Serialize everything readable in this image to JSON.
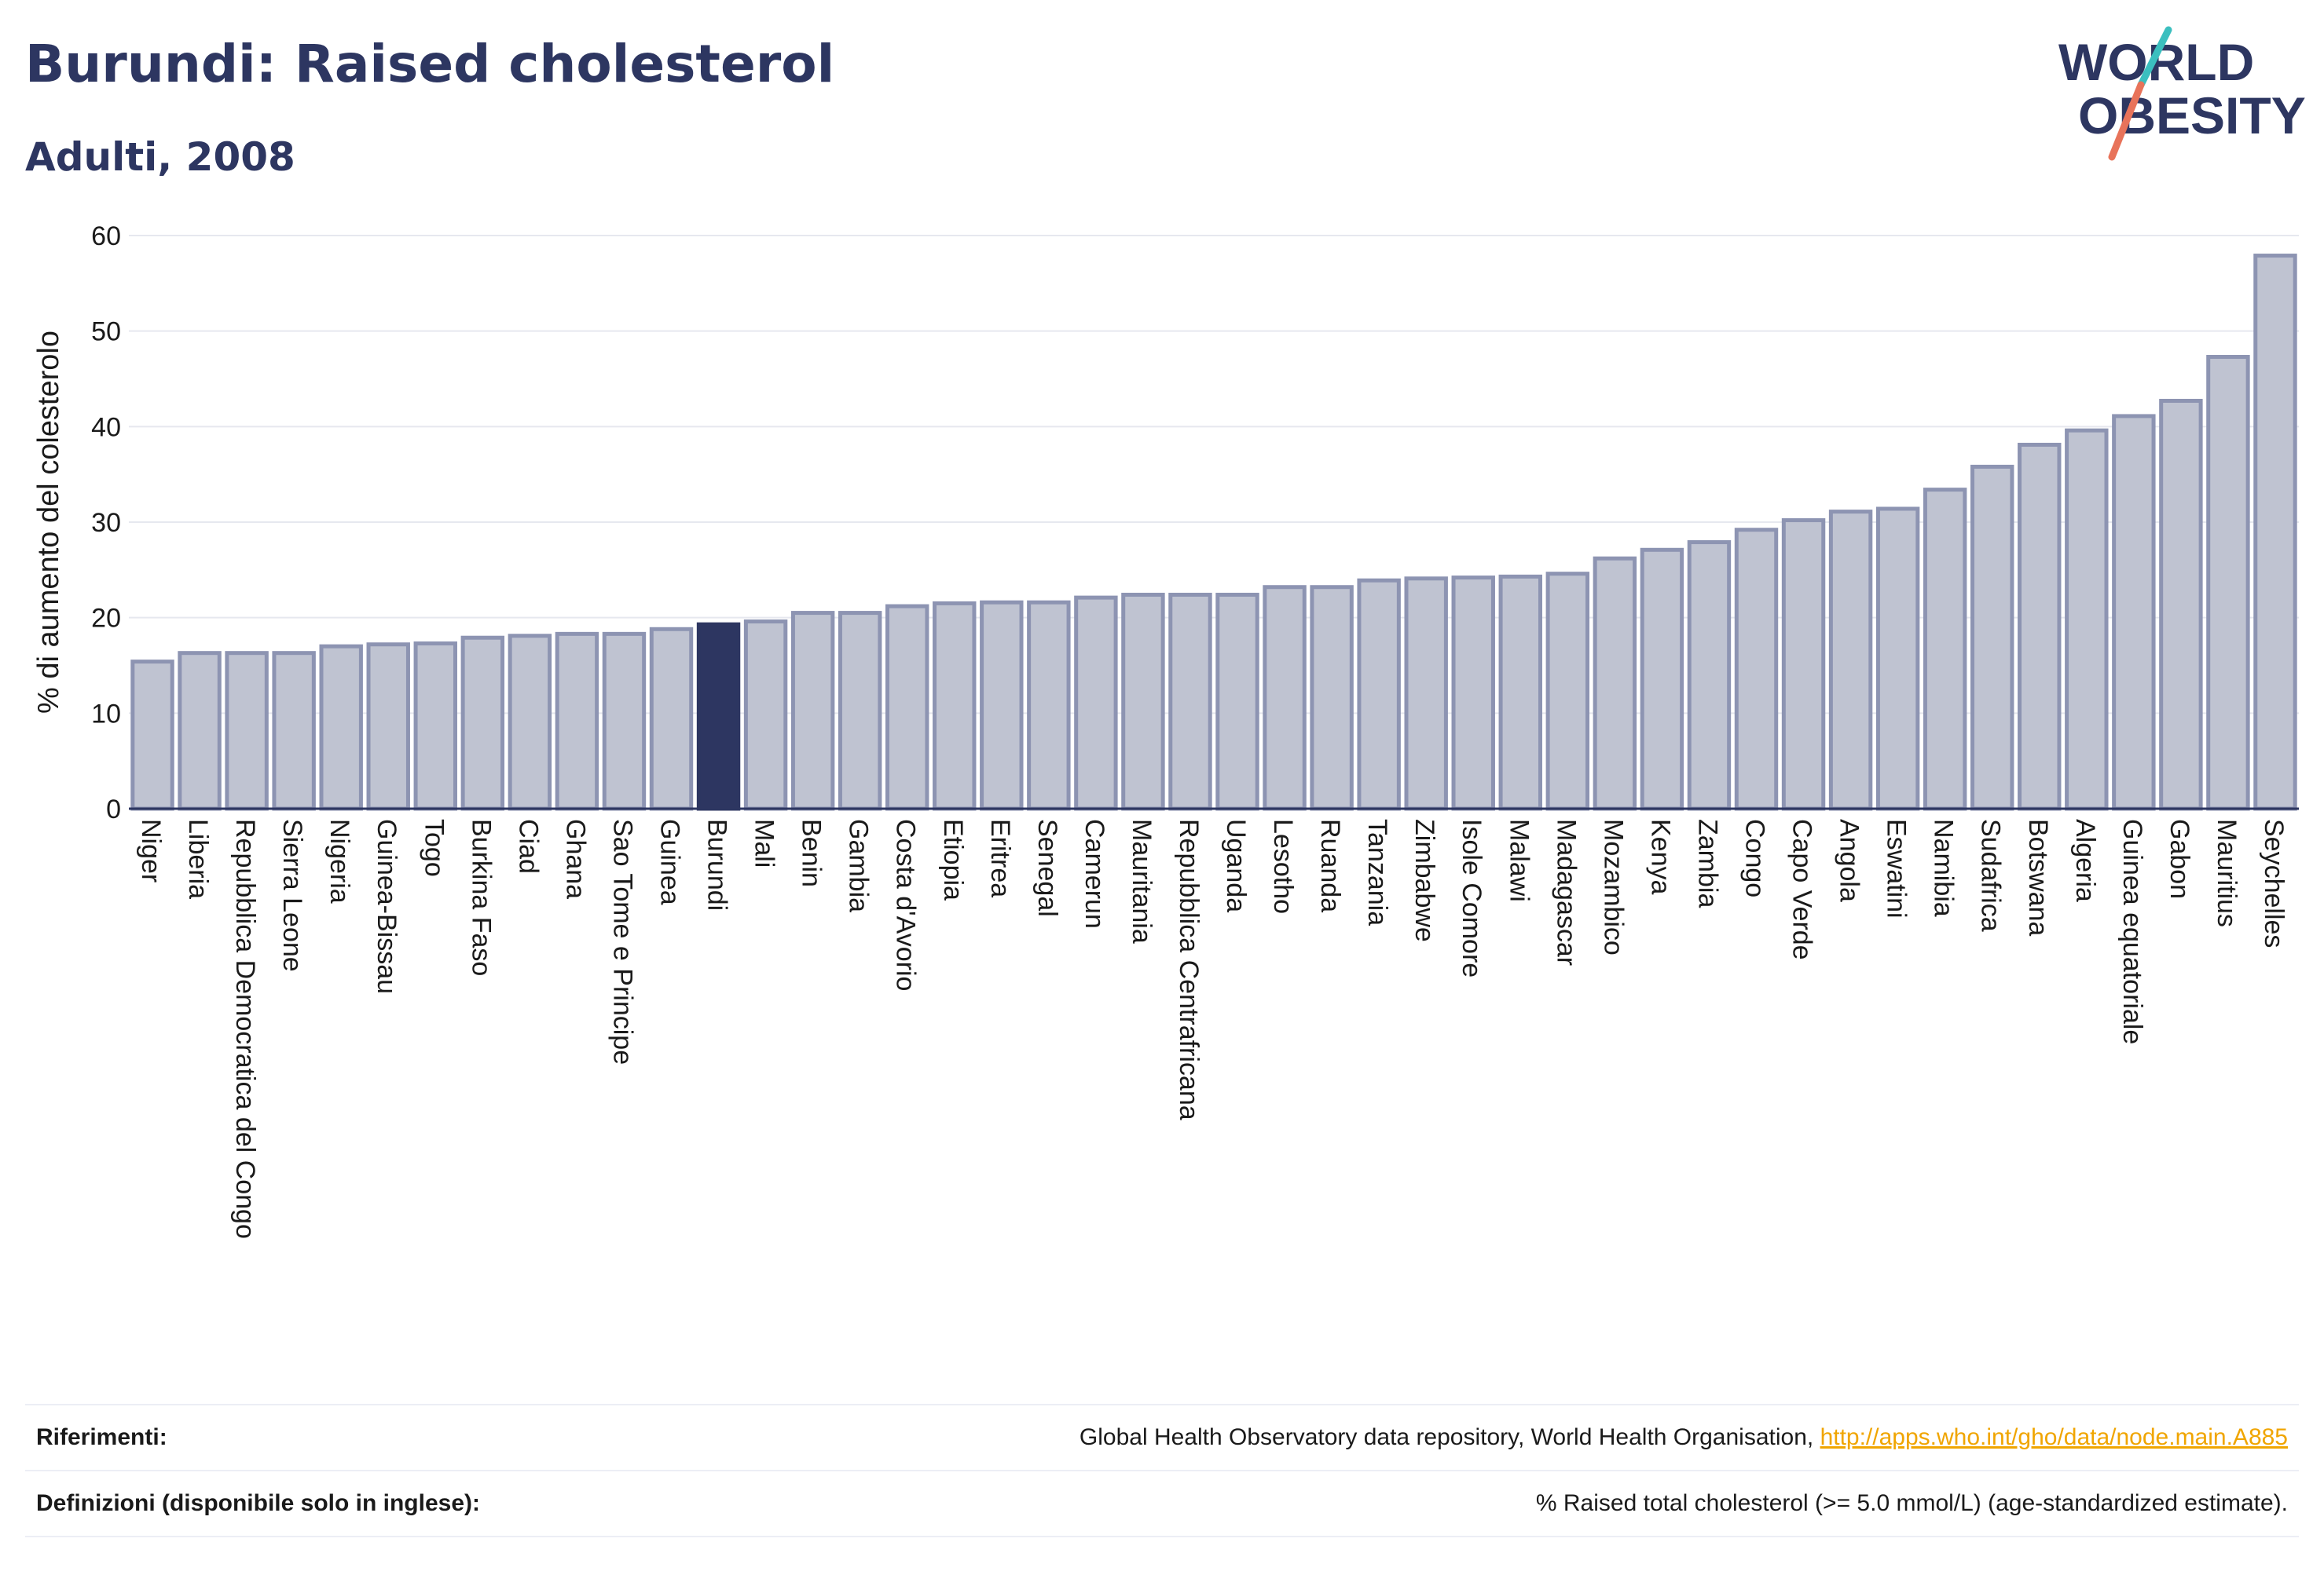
{
  "header": {
    "title": "Burundi: Raised cholesterol",
    "subtitle": "Adulti, 2008"
  },
  "logo": {
    "line1": "WORLD",
    "line2": "OBESITY",
    "text_color": "#2d3661",
    "slash_top_color": "#3bbfbf",
    "slash_bottom_color": "#e8735a"
  },
  "colors": {
    "bar_fill": "#bfc3d1",
    "bar_stroke": "#8d94b2",
    "highlight_fill": "#2d3661",
    "axis": "#2d3661",
    "grid": "#e6e8ef"
  },
  "chart_data": {
    "type": "bar",
    "ylabel": "% di aumento del colesterolo",
    "xlabel": "",
    "ylim": [
      0,
      60
    ],
    "yticks": [
      0,
      10,
      20,
      30,
      40,
      50,
      60
    ],
    "grid": true,
    "highlight": "Burundi",
    "categories": [
      "Niger",
      "Liberia",
      "Repubblica Democratica del Congo",
      "Sierra Leone",
      "Nigeria",
      "Guinea-Bissau",
      "Togo",
      "Burkina Faso",
      "Ciad",
      "Ghana",
      "Sao Tome e Principe",
      "Guinea",
      "Burundi",
      "Mali",
      "Benin",
      "Gambia",
      "Costa d'Avorio",
      "Etiopia",
      "Eritrea",
      "Senegal",
      "Camerun",
      "Mauritania",
      "Repubblica Centrafricana",
      "Uganda",
      "Lesotho",
      "Ruanda",
      "Tanzania",
      "Zimbabwe",
      "Isole Comore",
      "Malawi",
      "Madagascar",
      "Mozambico",
      "Kenya",
      "Zambia",
      "Congo",
      "Capo Verde",
      "Angola",
      "Eswatini",
      "Namibia",
      "Sudafrica",
      "Botswana",
      "Algeria",
      "Guinea equatoriale",
      "Gabon",
      "Mauritius",
      "Seychelles"
    ],
    "values": [
      15.4,
      16.3,
      16.3,
      16.3,
      17.0,
      17.2,
      17.3,
      17.9,
      18.1,
      18.3,
      18.3,
      18.8,
      19.3,
      19.6,
      20.5,
      20.5,
      21.2,
      21.5,
      21.6,
      21.6,
      22.1,
      22.4,
      22.4,
      22.4,
      23.2,
      23.2,
      23.9,
      24.1,
      24.2,
      24.3,
      24.6,
      26.2,
      27.1,
      27.9,
      29.2,
      30.2,
      31.1,
      31.4,
      33.4,
      35.8,
      38.1,
      39.6,
      41.1,
      42.7,
      47.3,
      57.9
    ]
  },
  "footer": {
    "references_label": "Riferimenti:",
    "references_text": "Global Health Observatory data repository, World Health Organisation, ",
    "references_link": "http://apps.who.int/gho/data/node.main.A885",
    "definitions_label": "Definizioni (disponibile solo in inglese):",
    "definitions_text": "% Raised total cholesterol (>= 5.0 mmol/L) (age-standardized estimate)."
  }
}
